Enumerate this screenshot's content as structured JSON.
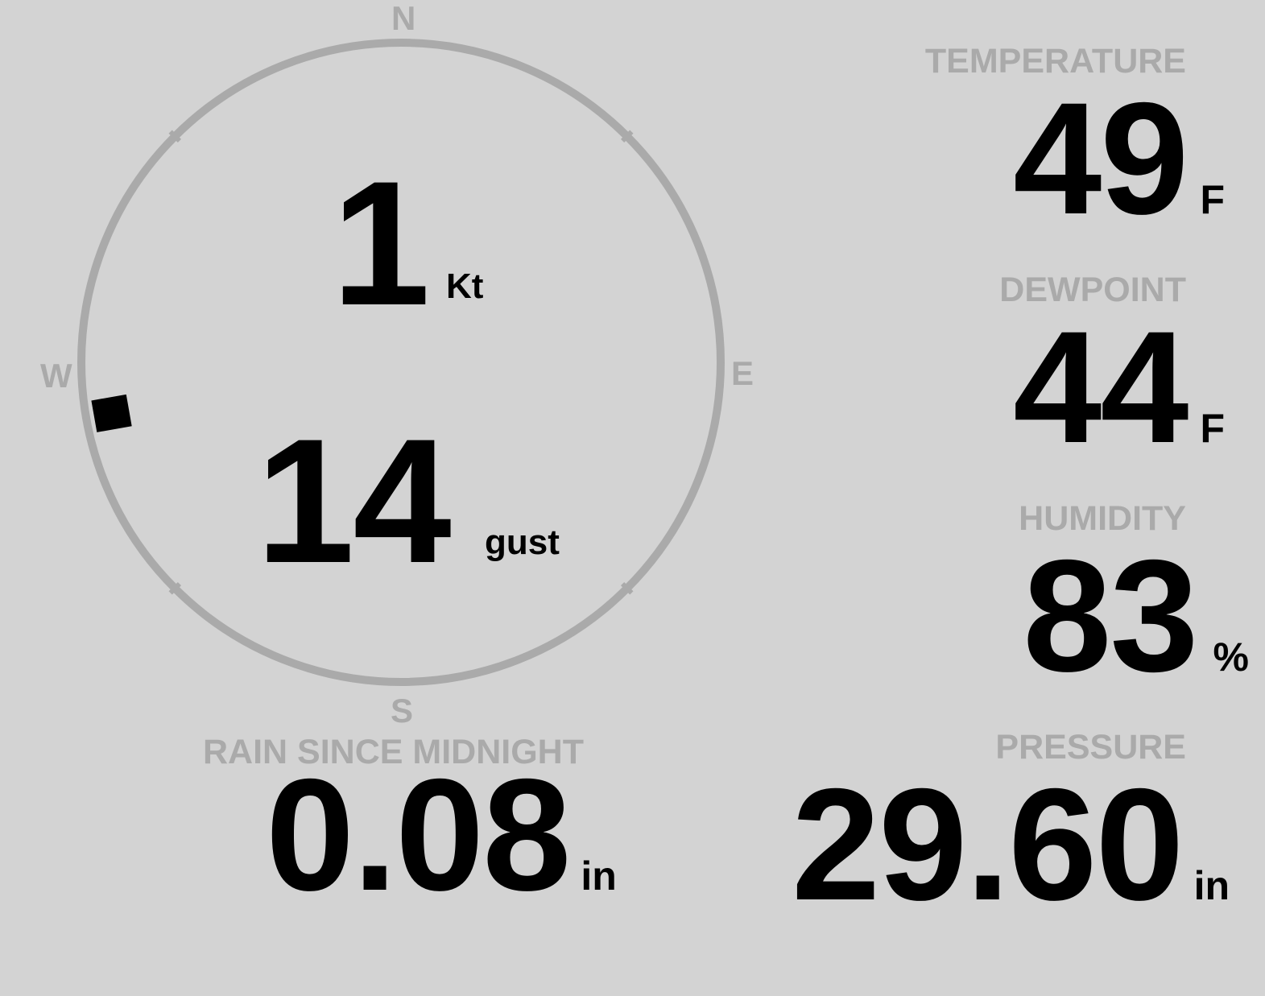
{
  "colors": {
    "background": "#d3d3d3",
    "label": "#aaaaaa",
    "value": "#000000",
    "ring": "#aaaaaa",
    "marker": "#000000"
  },
  "compass": {
    "north": "N",
    "south": "S",
    "east": "E",
    "west": "W",
    "wind_direction_deg": 260,
    "marker_icon": "square-marker"
  },
  "wind": {
    "speed": "1",
    "speed_unit": "Kt",
    "gust": "14",
    "gust_unit": "gust"
  },
  "temperature": {
    "label": "TEMPERATURE",
    "value": "49",
    "unit": "F"
  },
  "dewpoint": {
    "label": "DEWPOINT",
    "value": "44",
    "unit": "F"
  },
  "humidity": {
    "label": "HUMIDITY",
    "value": "83",
    "unit": "%"
  },
  "rain": {
    "label": "RAIN SINCE MIDNIGHT",
    "value": "0.08",
    "unit": "in"
  },
  "pressure": {
    "label": "PRESSURE",
    "value": "29.60",
    "unit": "in"
  }
}
